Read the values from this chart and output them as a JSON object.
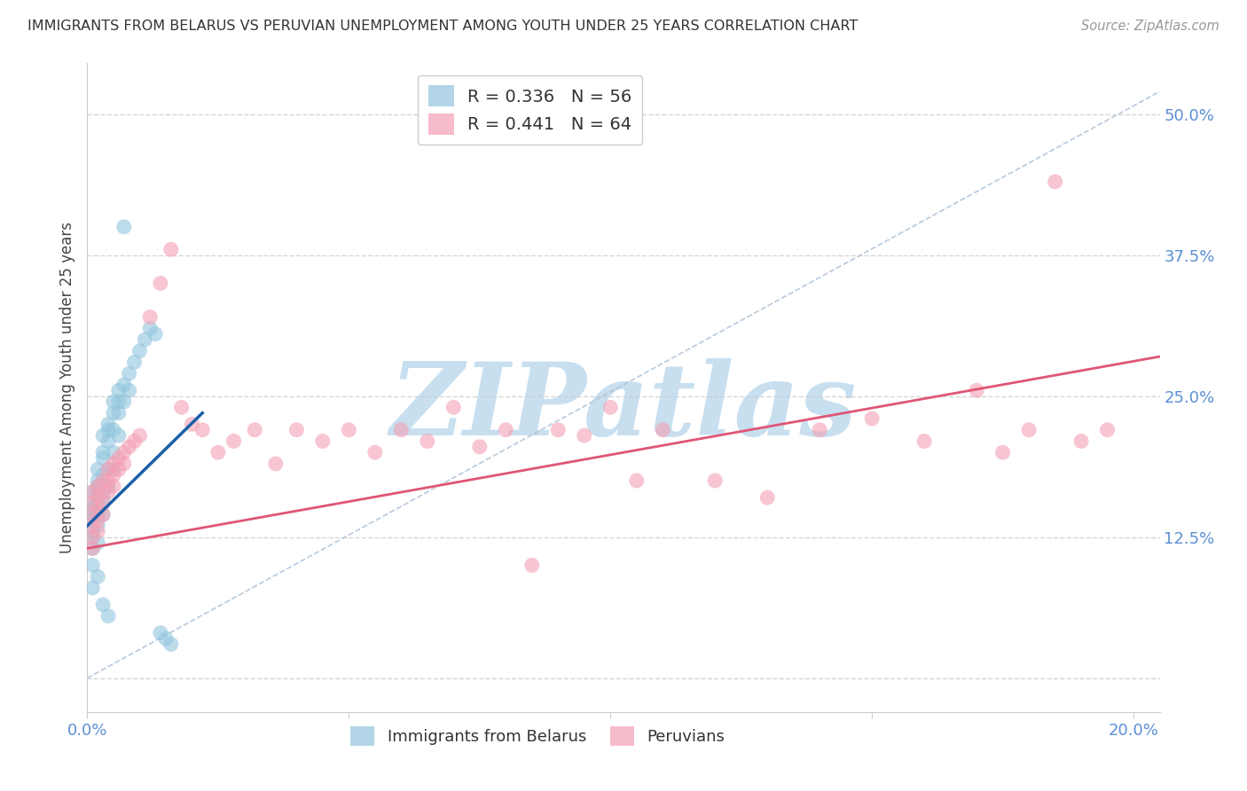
{
  "title": "IMMIGRANTS FROM BELARUS VS PERUVIAN UNEMPLOYMENT AMONG YOUTH UNDER 25 YEARS CORRELATION CHART",
  "source": "Source: ZipAtlas.com",
  "ylabel": "Unemployment Among Youth under 25 years",
  "xlim": [
    0.0,
    0.205
  ],
  "ylim": [
    -0.03,
    0.545
  ],
  "ytick_positions": [
    0.0,
    0.125,
    0.25,
    0.375,
    0.5
  ],
  "ytick_labels": [
    "",
    "12.5%",
    "25.0%",
    "37.5%",
    "50.0%"
  ],
  "xtick_positions": [
    0.0,
    0.05,
    0.1,
    0.15,
    0.2
  ],
  "xtick_labels": [
    "0.0%",
    "",
    "",
    "",
    "20.0%"
  ],
  "watermark": "ZIPatlas",
  "watermark_color": "#c8dff0",
  "background_color": "#ffffff",
  "grid_color": "#cccccc",
  "blue_color": "#92c5de",
  "pink_color": "#f4a0b5",
  "blue_line_color": "#1a5fa8",
  "pink_line_color": "#e05575",
  "ref_line_color": "#b0c4d8",
  "tick_color": "#5b8fd4",
  "title_color": "#333333",
  "source_color": "#999999",
  "legend_edge_color": "#cccccc",
  "legend_R_color_blue": "#1a8cd8",
  "legend_R_color_pink": "#e0507a",
  "legend_N_color_blue": "#1a5fa8",
  "legend_N_color_pink": "#c02060",
  "blue_line_x0": 0.0,
  "blue_line_x1": 0.022,
  "blue_line_y0": 0.135,
  "blue_line_y1": 0.235,
  "pink_line_x0": 0.0,
  "pink_line_x1": 0.205,
  "pink_line_y0": 0.115,
  "pink_line_y1": 0.285,
  "ref_line_x0": 0.0,
  "ref_line_x1": 0.205,
  "ref_line_y0": 0.0,
  "ref_line_y1": 0.52,
  "blue_scatter_x": [
    0.001,
    0.001,
    0.001,
    0.001,
    0.001,
    0.001,
    0.001,
    0.001,
    0.001,
    0.001,
    0.002,
    0.002,
    0.002,
    0.002,
    0.002,
    0.002,
    0.002,
    0.002,
    0.002,
    0.002,
    0.003,
    0.003,
    0.003,
    0.003,
    0.003,
    0.003,
    0.003,
    0.003,
    0.004,
    0.004,
    0.004,
    0.004,
    0.004,
    0.004,
    0.005,
    0.005,
    0.005,
    0.005,
    0.005,
    0.006,
    0.006,
    0.006,
    0.006,
    0.007,
    0.007,
    0.007,
    0.008,
    0.008,
    0.009,
    0.01,
    0.011,
    0.012,
    0.013,
    0.014,
    0.015,
    0.016
  ],
  "blue_scatter_y": [
    0.155,
    0.165,
    0.145,
    0.15,
    0.14,
    0.13,
    0.125,
    0.115,
    0.1,
    0.08,
    0.175,
    0.185,
    0.165,
    0.155,
    0.17,
    0.16,
    0.145,
    0.135,
    0.12,
    0.09,
    0.2,
    0.215,
    0.195,
    0.18,
    0.17,
    0.16,
    0.145,
    0.065,
    0.225,
    0.21,
    0.22,
    0.185,
    0.17,
    0.055,
    0.245,
    0.235,
    0.22,
    0.2,
    0.185,
    0.255,
    0.245,
    0.235,
    0.215,
    0.4,
    0.26,
    0.245,
    0.27,
    0.255,
    0.28,
    0.29,
    0.3,
    0.31,
    0.305,
    0.04,
    0.035,
    0.03
  ],
  "pink_scatter_x": [
    0.001,
    0.001,
    0.001,
    0.001,
    0.001,
    0.001,
    0.002,
    0.002,
    0.002,
    0.002,
    0.002,
    0.003,
    0.003,
    0.003,
    0.003,
    0.004,
    0.004,
    0.004,
    0.005,
    0.005,
    0.005,
    0.006,
    0.006,
    0.007,
    0.007,
    0.008,
    0.009,
    0.01,
    0.012,
    0.014,
    0.016,
    0.018,
    0.02,
    0.022,
    0.025,
    0.028,
    0.032,
    0.036,
    0.04,
    0.045,
    0.05,
    0.055,
    0.06,
    0.065,
    0.07,
    0.075,
    0.08,
    0.085,
    0.09,
    0.095,
    0.1,
    0.105,
    0.11,
    0.12,
    0.13,
    0.14,
    0.15,
    0.16,
    0.17,
    0.175,
    0.18,
    0.185,
    0.19,
    0.195
  ],
  "pink_scatter_y": [
    0.155,
    0.165,
    0.145,
    0.135,
    0.125,
    0.115,
    0.17,
    0.16,
    0.15,
    0.14,
    0.13,
    0.175,
    0.165,
    0.155,
    0.145,
    0.185,
    0.175,
    0.165,
    0.19,
    0.18,
    0.17,
    0.195,
    0.185,
    0.2,
    0.19,
    0.205,
    0.21,
    0.215,
    0.32,
    0.35,
    0.38,
    0.24,
    0.225,
    0.22,
    0.2,
    0.21,
    0.22,
    0.19,
    0.22,
    0.21,
    0.22,
    0.2,
    0.22,
    0.21,
    0.24,
    0.205,
    0.22,
    0.1,
    0.22,
    0.215,
    0.24,
    0.175,
    0.22,
    0.175,
    0.16,
    0.22,
    0.23,
    0.21,
    0.255,
    0.2,
    0.22,
    0.44,
    0.21,
    0.22
  ]
}
